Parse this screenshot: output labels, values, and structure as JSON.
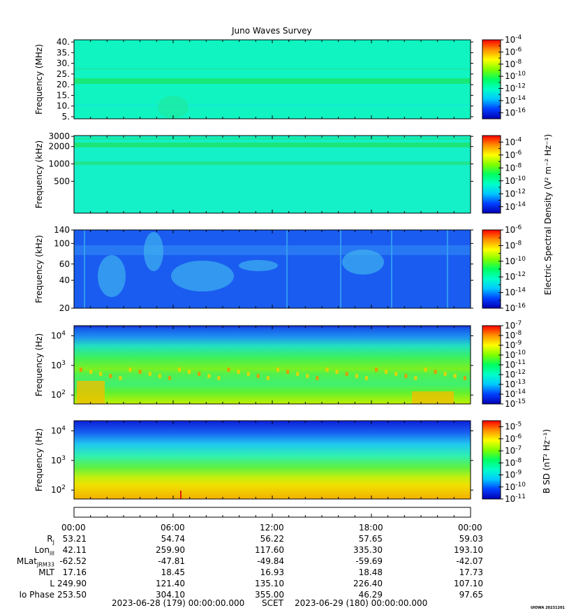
{
  "chart_data": {
    "type": "heatmap",
    "title": "Juno Waves Survey",
    "x_tick_labels": [
      "00:00",
      "06:00",
      "12:00",
      "18:00",
      "00:00"
    ],
    "panels": [
      {
        "id": "p1",
        "ylabel": "Frequency (MHz)",
        "yscale": "linear",
        "ylim": [
          4,
          41
        ],
        "yticks": [
          {
            "label": "40.",
            "value": 40
          },
          {
            "label": "35.",
            "value": 35
          },
          {
            "label": "30.",
            "value": 30
          },
          {
            "label": "25.",
            "value": 25
          },
          {
            "label": "20.",
            "value": 20
          },
          {
            "label": "15.",
            "value": 15
          },
          {
            "label": "10.",
            "value": 10
          },
          {
            "label": "5.",
            "value": 5
          }
        ],
        "colorbar_ticks": [
          "-4",
          "-6",
          "-8",
          "-10",
          "-12",
          "-14",
          "-16"
        ],
        "clim_exp": [
          -17,
          -4
        ]
      },
      {
        "id": "p2",
        "ylabel": "Frequency (kHz)",
        "yscale": "log",
        "ylim": [
          140,
          3100
        ],
        "yticks": [
          {
            "label": "3000",
            "value": 3000
          },
          {
            "label": "2000",
            "value": 2000
          },
          {
            "label": "1000",
            "value": 1000
          },
          {
            "label": "500",
            "value": 500
          }
        ],
        "colorbar_ticks": [
          "-4",
          "-6",
          "-8",
          "-10",
          "-12",
          "-14"
        ],
        "clim_exp": [
          -15,
          -3
        ]
      },
      {
        "id": "p3",
        "ylabel": "Frequency (kHz)",
        "yscale": "log",
        "ylim": [
          20,
          140
        ],
        "yticks": [
          {
            "label": "140",
            "value": 140
          },
          {
            "label": "100",
            "value": 100
          },
          {
            "label": "60",
            "value": 60
          },
          {
            "label": "40",
            "value": 40
          },
          {
            "label": "20",
            "value": 20
          }
        ],
        "colorbar_ticks": [
          "-6",
          "-8",
          "-10",
          "-12",
          "-14",
          "-16"
        ],
        "clim_exp": [
          -16,
          -6
        ]
      },
      {
        "id": "p4",
        "ylabel": "Frequency (Hz)",
        "yscale": "log",
        "ylim": [
          50,
          22000
        ],
        "yticks": [
          {
            "label": "10",
            "exp": "4",
            "value": 10000
          },
          {
            "label": "10",
            "exp": "3",
            "value": 1000
          },
          {
            "label": "10",
            "exp": "2",
            "value": 100
          }
        ],
        "colorbar_ticks": [
          "-7",
          "-8",
          "-9",
          "-10",
          "-11",
          "-12",
          "-13",
          "-14",
          "-15"
        ],
        "clim_exp": [
          -15,
          -7
        ]
      },
      {
        "id": "p5",
        "ylabel": "Frequency (Hz)",
        "yscale": "log",
        "ylim": [
          50,
          22000
        ],
        "yticks": [
          {
            "label": "10",
            "exp": "4",
            "value": 10000
          },
          {
            "label": "10",
            "exp": "3",
            "value": 1000
          },
          {
            "label": "10",
            "exp": "2",
            "value": 100
          }
        ],
        "colorbar_ticks": [
          "-5",
          "-6",
          "-7",
          "-8",
          "-9",
          "-10",
          "-11"
        ],
        "clim_exp": [
          -11,
          -4.5
        ]
      }
    ],
    "colorbar_labels": {
      "electric": "Electric Spectral Density (V² m⁻² Hz⁻¹)",
      "magnetic": "B SD (nT² Hz⁻¹)"
    },
    "ephemeris": {
      "row_labels": [
        "R",
        "Lon",
        "MLat",
        "MLT",
        "L",
        "Io Phase"
      ],
      "row_subscripts": [
        "J",
        "III",
        "JRM33",
        "",
        "",
        ""
      ],
      "rows": [
        [
          "53.21",
          "54.74",
          "56.22",
          "57.65",
          "59.03"
        ],
        [
          "42.11",
          "259.90",
          "117.60",
          "335.30",
          "193.10"
        ],
        [
          "-62.52",
          "-47.81",
          "-49.84",
          "-59.69",
          "-42.07"
        ],
        [
          "17.16",
          "18.45",
          "16.93",
          "18.48",
          "17.73"
        ],
        [
          "249.90",
          "121.40",
          "135.10",
          "226.40",
          "107.10"
        ],
        [
          "253.50",
          "304.10",
          "355.00",
          "46.29",
          "97.65"
        ]
      ]
    }
  },
  "footer": {
    "start": "2023-06-28 (179) 00:00:00.000",
    "scet": "SCET",
    "end": "2023-06-29 (180) 00:00:00.000",
    "stamp": "UIOWA 20231201"
  },
  "colors": {
    "background": "#ffffff",
    "colormap": [
      "#0000b4",
      "#0040ff",
      "#00c8ff",
      "#00ffc8",
      "#00ff60",
      "#80ff00",
      "#ffff00",
      "#ff9000",
      "#ff0000"
    ]
  }
}
